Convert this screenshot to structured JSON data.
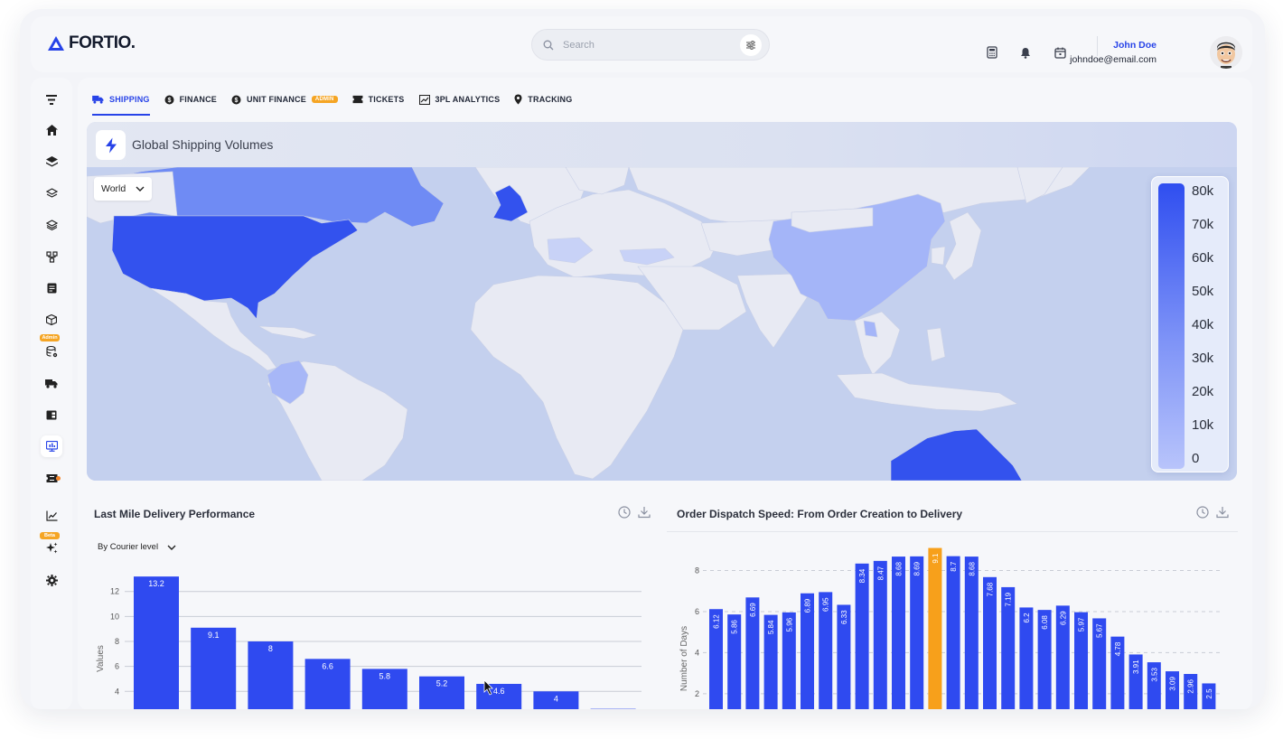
{
  "app": {
    "logo_text": "FORTIO."
  },
  "search": {
    "placeholder": "Search"
  },
  "user": {
    "name": "John Doe",
    "email": "johndoe@email.com"
  },
  "sidebar": {
    "badges": {
      "admin": "Admin",
      "beta": "Beta"
    }
  },
  "tabs": [
    {
      "label": "SHIPPING",
      "active": true
    },
    {
      "label": "FINANCE"
    },
    {
      "label": "UNIT FINANCE",
      "tag": "ADMIN"
    },
    {
      "label": "TICKETS"
    },
    {
      "label": "3PL ANALYTICS"
    },
    {
      "label": "TRACKING"
    }
  ],
  "map": {
    "title": "Global Shipping Volumes",
    "region_select": "World",
    "legend": [
      "80k",
      "70k",
      "60k",
      "50k",
      "40k",
      "30k",
      "20k",
      "10k",
      "0"
    ]
  },
  "last_mile": {
    "title": "Last Mile Delivery Performance",
    "filter": "By Courier level",
    "chart_data": {
      "type": "bar",
      "ylabel": "Values",
      "yticks": [
        4,
        6,
        8,
        10,
        12
      ],
      "ylim": [
        2.5,
        13.5
      ],
      "values": [
        13.2,
        9.1,
        8,
        6.6,
        5.8,
        5.2,
        4.6,
        4,
        2.6
      ],
      "labels": [
        "13.2",
        "9.1",
        "8",
        "6.6",
        "5.8",
        "5.2",
        "4.6",
        "4",
        ""
      ],
      "color": "#2f4af0"
    }
  },
  "dispatch": {
    "title": "Order Dispatch Speed: From Order Creation to Delivery",
    "chart_data": {
      "type": "bar",
      "ylabel": "Number of Days",
      "yticks": [
        2,
        4,
        6,
        8
      ],
      "ylim": [
        1.2,
        9.3
      ],
      "values": [
        6.12,
        5.86,
        6.69,
        5.84,
        5.96,
        6.89,
        6.95,
        6.33,
        8.34,
        8.47,
        8.68,
        8.69,
        9.1,
        8.7,
        8.68,
        7.68,
        7.19,
        6.2,
        6.08,
        6.29,
        5.97,
        5.67,
        4.78,
        3.91,
        3.53,
        3.09,
        2.96,
        2.5
      ],
      "highlight_index": 12,
      "color": "#2f4af0",
      "highlight_color": "#f7a01b"
    }
  }
}
